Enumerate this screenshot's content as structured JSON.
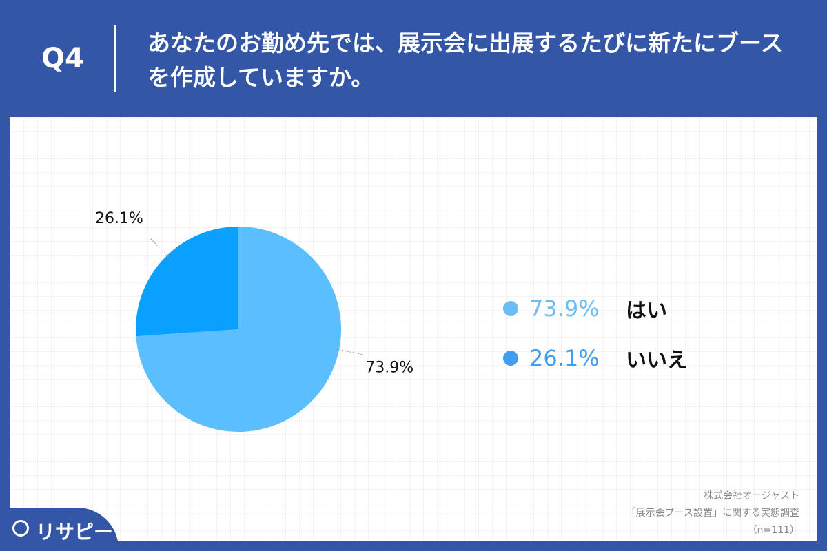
{
  "header": {
    "question_number": "Q4",
    "question": "あなたのお勤め先では、展示会に出展するたびに新たにブースを作成していますか。"
  },
  "chart_data": {
    "type": "pie",
    "categories": [
      "はい",
      "いいえ"
    ],
    "values": [
      73.9,
      26.1
    ],
    "data_labels": [
      "73.9%",
      "26.1%"
    ],
    "colors": [
      "#5bbfff",
      "#0aa0ff"
    ],
    "legend_colors": [
      "#6cbdf6",
      "#3f9ef0"
    ],
    "legend_placement": "right",
    "start_angle": "12 o'clock, clockwise"
  },
  "legend": [
    {
      "pct": "73.9%",
      "label": "はい"
    },
    {
      "pct": "26.1%",
      "label": "いいえ"
    }
  ],
  "credit": {
    "line1": "株式会社オージャスト",
    "line2": "「展示会ブース設置」に関する実態調査",
    "line3": "（n=111）"
  },
  "logo": {
    "text": "リサピー"
  }
}
